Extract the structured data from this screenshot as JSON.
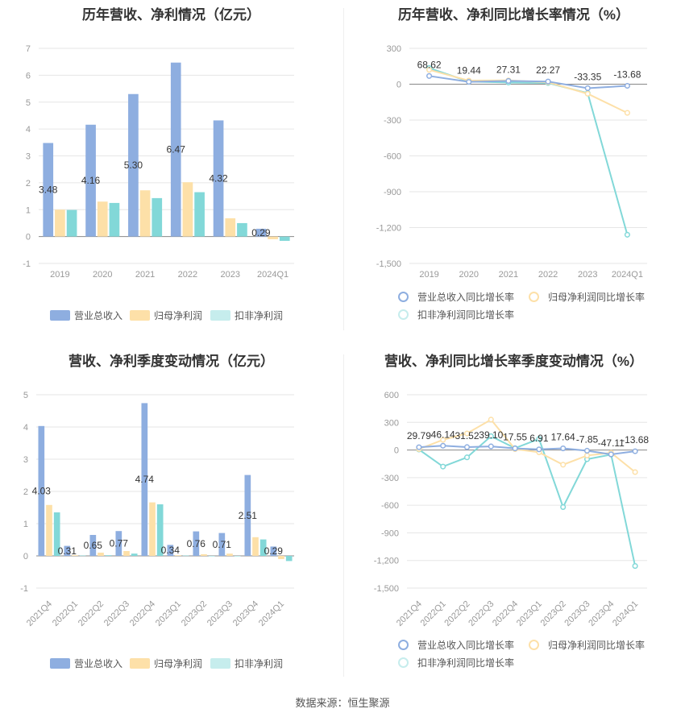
{
  "colors": {
    "revenue": "#8eaee0",
    "net_profit": "#fde0a8",
    "deducted_profit": "#82d8d8"
  },
  "source_text": "数据来源：恒生聚源",
  "chart_data": [
    {
      "id": "annual_bar",
      "type": "bar",
      "title": "历年营收、净利情况（亿元）",
      "categories": [
        "2019",
        "2020",
        "2021",
        "2022",
        "2023",
        "2024Q1"
      ],
      "series": [
        {
          "name": "营业总收入",
          "values": [
            3.48,
            4.16,
            5.3,
            6.47,
            4.32,
            0.29
          ]
        },
        {
          "name": "归母净利润",
          "values": [
            1.0,
            1.3,
            1.72,
            2.02,
            0.68,
            -0.1
          ]
        },
        {
          "name": "扣非净利润",
          "values": [
            0.99,
            1.25,
            1.43,
            1.65,
            0.5,
            -0.16
          ]
        }
      ],
      "data_labels": [
        "3.48",
        "4.16",
        "5.30",
        "6.47",
        "4.32",
        "0.29"
      ],
      "yticks": [
        7,
        6,
        5,
        4,
        3,
        2,
        1,
        0,
        -1
      ],
      "ylim": [
        -1,
        7
      ],
      "legend_position": "bottom"
    },
    {
      "id": "annual_growth",
      "type": "line",
      "title": "历年营收、净利同比增长率情况（%）",
      "categories": [
        "2019",
        "2020",
        "2021",
        "2022",
        "2023",
        "2024Q1"
      ],
      "series": [
        {
          "name": "营业总收入同比增长率",
          "values": [
            68.62,
            19.44,
            27.31,
            22.27,
            -33.35,
            -13.68
          ]
        },
        {
          "name": "归母净利润同比增长率",
          "values": [
            120,
            30,
            32,
            16,
            -80,
            -240
          ]
        },
        {
          "name": "扣非净利润同比增长率",
          "values": [
            135,
            22,
            14,
            10,
            -75,
            -1260
          ]
        }
      ],
      "data_labels": [
        "68.62",
        "19.44",
        "27.31",
        "22.27",
        "-33.35",
        "-13.68"
      ],
      "yticks": [
        300,
        0,
        -300,
        -600,
        -900,
        "-1,200",
        "-1,500"
      ],
      "ylim": [
        -1500,
        300
      ],
      "legend_position": "bottom"
    },
    {
      "id": "quarterly_bar",
      "type": "bar",
      "title": "营收、净利季度变动情况（亿元）",
      "categories": [
        "2021Q4",
        "2022Q1",
        "2022Q2",
        "2022Q3",
        "2022Q4",
        "2023Q1",
        "2023Q2",
        "2023Q3",
        "2023Q4",
        "2024Q1"
      ],
      "series": [
        {
          "name": "营业总收入",
          "values": [
            4.03,
            0.31,
            0.65,
            0.77,
            4.74,
            0.34,
            0.76,
            0.71,
            2.51,
            0.29
          ]
        },
        {
          "name": "归母净利润",
          "values": [
            1.58,
            0.02,
            0.1,
            0.15,
            1.66,
            0.02,
            0.05,
            0.07,
            0.58,
            -0.1
          ]
        },
        {
          "name": "扣非净利润",
          "values": [
            1.35,
            0.01,
            0.02,
            0.07,
            1.6,
            0.01,
            0.0,
            0.0,
            0.51,
            -0.16
          ]
        }
      ],
      "data_labels": [
        "4.03",
        "0.31",
        "0.65",
        "0.77",
        "4.74",
        "0.34",
        "0.76",
        "0.71",
        "2.51",
        "0.29"
      ],
      "yticks": [
        5,
        4,
        3,
        2,
        1,
        0,
        -1
      ],
      "ylim": [
        -1,
        5
      ],
      "legend_position": "bottom"
    },
    {
      "id": "quarterly_growth",
      "type": "line",
      "title": "营收、净利同比增长率季度变动情况（%）",
      "categories": [
        "2021Q4",
        "2022Q1",
        "2022Q2",
        "2022Q3",
        "2022Q4",
        "2023Q1",
        "2023Q2",
        "2023Q3",
        "2023Q4",
        "2024Q1"
      ],
      "series": [
        {
          "name": "营业总收入同比增长率",
          "values": [
            29.79,
            46.14,
            31.52,
            39.1,
            17.55,
            6.91,
            17.64,
            -7.85,
            -47.11,
            -13.68
          ]
        },
        {
          "name": "归母净利润同比增长率",
          "values": [
            10,
            110,
            180,
            330,
            10,
            -25,
            -160,
            -60,
            -30,
            -240
          ]
        },
        {
          "name": "扣非净利润同比增长率",
          "values": [
            5,
            -180,
            -80,
            150,
            20,
            120,
            -620,
            -100,
            -50,
            -1260
          ]
        }
      ],
      "data_labels": [
        "29.79",
        "46.14",
        "31.52",
        "39.10",
        "17.55",
        "6.91",
        "17.64",
        "-7.85",
        "-47.11",
        "-13.68"
      ],
      "yticks": [
        600,
        300,
        0,
        -300,
        -600,
        -900,
        "-1,200",
        "-1,500"
      ],
      "ylim": [
        -1500,
        600
      ],
      "legend_position": "bottom"
    }
  ]
}
